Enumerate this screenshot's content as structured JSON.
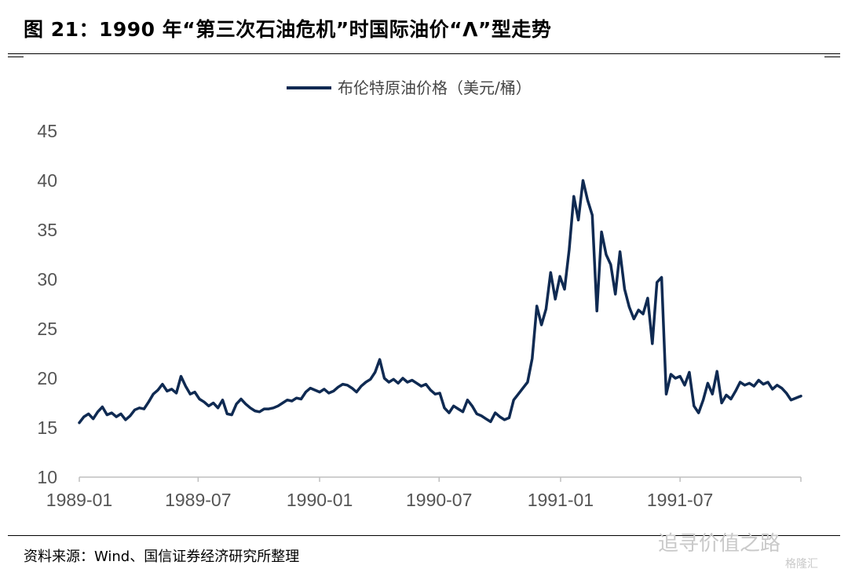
{
  "header": {
    "title": "图 21：1990 年“第三次石油危机”时国际油价“Λ”型走势"
  },
  "footer": {
    "source": "资料来源：Wind、国信证券经济研究所整理",
    "watermark": "追寻价值之路",
    "watermark_sub": "格隆汇"
  },
  "chart_data": {
    "type": "line",
    "legend": "布伦特原油价格（美元/桶）",
    "legend_position": "top-center",
    "x_tick_labels": [
      "1989-01",
      "1989-07",
      "1990-01",
      "1990-07",
      "1991-01",
      "1991-07"
    ],
    "y_tick_labels": [
      "10",
      "15",
      "20",
      "25",
      "30",
      "35",
      "40",
      "45"
    ],
    "ylim": [
      10,
      45
    ],
    "xlim": [
      "1989-01-02",
      "1991-12-31"
    ],
    "grid": false,
    "line_color": "#0f2a52",
    "series": [
      {
        "name": "布伦特原油价格（美元/桶）",
        "points": [
          [
            "1989-01-02",
            15.5
          ],
          [
            "1989-01-09",
            16.1
          ],
          [
            "1989-01-16",
            16.4
          ],
          [
            "1989-01-23",
            15.9
          ],
          [
            "1989-01-30",
            16.6
          ],
          [
            "1989-02-06",
            17.1
          ],
          [
            "1989-02-13",
            16.3
          ],
          [
            "1989-02-20",
            16.5
          ],
          [
            "1989-02-27",
            16.1
          ],
          [
            "1989-03-06",
            16.4
          ],
          [
            "1989-03-13",
            15.8
          ],
          [
            "1989-03-20",
            16.2
          ],
          [
            "1989-03-27",
            16.8
          ],
          [
            "1989-04-03",
            17.0
          ],
          [
            "1989-04-10",
            16.9
          ],
          [
            "1989-04-17",
            17.6
          ],
          [
            "1989-04-24",
            18.4
          ],
          [
            "1989-05-01",
            18.8
          ],
          [
            "1989-05-08",
            19.4
          ],
          [
            "1989-05-15",
            18.7
          ],
          [
            "1989-05-22",
            18.9
          ],
          [
            "1989-05-29",
            18.5
          ],
          [
            "1989-06-05",
            20.2
          ],
          [
            "1989-06-12",
            19.2
          ],
          [
            "1989-06-19",
            18.4
          ],
          [
            "1989-06-26",
            18.6
          ],
          [
            "1989-07-03",
            17.9
          ],
          [
            "1989-07-10",
            17.6
          ],
          [
            "1989-07-17",
            17.2
          ],
          [
            "1989-07-24",
            17.5
          ],
          [
            "1989-07-31",
            17.0
          ],
          [
            "1989-08-07",
            17.8
          ],
          [
            "1989-08-14",
            16.4
          ],
          [
            "1989-08-21",
            16.3
          ],
          [
            "1989-08-28",
            17.4
          ],
          [
            "1989-09-04",
            17.9
          ],
          [
            "1989-09-11",
            17.4
          ],
          [
            "1989-09-18",
            17.0
          ],
          [
            "1989-09-25",
            16.7
          ],
          [
            "1989-10-02",
            16.6
          ],
          [
            "1989-10-09",
            16.9
          ],
          [
            "1989-10-16",
            16.9
          ],
          [
            "1989-10-23",
            17.0
          ],
          [
            "1989-10-30",
            17.2
          ],
          [
            "1989-11-06",
            17.5
          ],
          [
            "1989-11-13",
            17.8
          ],
          [
            "1989-11-20",
            17.7
          ],
          [
            "1989-11-27",
            18.0
          ],
          [
            "1989-12-04",
            17.9
          ],
          [
            "1989-12-11",
            18.6
          ],
          [
            "1989-12-18",
            19.0
          ],
          [
            "1989-12-25",
            18.8
          ],
          [
            "1990-01-01",
            18.6
          ],
          [
            "1990-01-08",
            18.9
          ],
          [
            "1990-01-15",
            18.5
          ],
          [
            "1990-01-22",
            18.7
          ],
          [
            "1990-01-29",
            19.1
          ],
          [
            "1990-02-05",
            19.4
          ],
          [
            "1990-02-12",
            19.3
          ],
          [
            "1990-02-19",
            19.0
          ],
          [
            "1990-02-26",
            18.6
          ],
          [
            "1990-03-05",
            19.2
          ],
          [
            "1990-03-12",
            19.6
          ],
          [
            "1990-03-19",
            19.9
          ],
          [
            "1990-03-26",
            20.6
          ],
          [
            "1990-04-02",
            21.9
          ],
          [
            "1990-04-09",
            20.0
          ],
          [
            "1990-04-16",
            19.6
          ],
          [
            "1990-04-23",
            19.9
          ],
          [
            "1990-04-30",
            19.5
          ],
          [
            "1990-05-07",
            20.0
          ],
          [
            "1990-05-14",
            19.6
          ],
          [
            "1990-05-21",
            19.8
          ],
          [
            "1990-05-28",
            19.5
          ],
          [
            "1990-06-04",
            19.2
          ],
          [
            "1990-06-11",
            19.4
          ],
          [
            "1990-06-18",
            18.8
          ],
          [
            "1990-06-25",
            18.4
          ],
          [
            "1990-07-02",
            18.5
          ],
          [
            "1990-07-09",
            17.0
          ],
          [
            "1990-07-16",
            16.5
          ],
          [
            "1990-07-23",
            17.2
          ],
          [
            "1990-07-30",
            16.9
          ],
          [
            "1990-08-06",
            16.6
          ],
          [
            "1990-08-13",
            17.8
          ],
          [
            "1990-08-20",
            17.2
          ],
          [
            "1990-08-27",
            16.4
          ],
          [
            "1990-09-03",
            16.2
          ],
          [
            "1990-09-10",
            15.9
          ],
          [
            "1990-09-17",
            15.6
          ],
          [
            "1990-09-24",
            16.5
          ],
          [
            "1990-10-01",
            16.1
          ],
          [
            "1990-10-08",
            15.8
          ],
          [
            "1990-10-15",
            16.0
          ],
          [
            "1990-10-22",
            17.8
          ],
          [
            "1990-10-29",
            18.4
          ],
          [
            "1990-11-05",
            19.0
          ],
          [
            "1990-11-12",
            19.6
          ],
          [
            "1990-11-19",
            22.0
          ],
          [
            "1990-11-26",
            27.3
          ],
          [
            "1990-12-03",
            25.4
          ],
          [
            "1990-12-10",
            27.0
          ],
          [
            "1990-12-17",
            30.7
          ],
          [
            "1990-12-24",
            28.0
          ],
          [
            "1990-12-31",
            30.3
          ],
          [
            "1991-01-07",
            29.0
          ],
          [
            "1991-01-14",
            33.0
          ],
          [
            "1991-01-21",
            38.4
          ],
          [
            "1991-01-28",
            36.0
          ],
          [
            "1991-02-04",
            40.0
          ],
          [
            "1991-02-11",
            38.0
          ],
          [
            "1991-02-18",
            36.5
          ],
          [
            "1991-02-25",
            26.8
          ],
          [
            "1991-03-04",
            34.8
          ],
          [
            "1991-03-11",
            32.5
          ],
          [
            "1991-03-18",
            31.5
          ],
          [
            "1991-03-25",
            28.5
          ],
          [
            "1991-04-01",
            32.8
          ],
          [
            "1991-04-08",
            29.0
          ],
          [
            "1991-04-15",
            27.2
          ],
          [
            "1991-04-22",
            26.0
          ],
          [
            "1991-04-29",
            26.9
          ],
          [
            "1991-05-06",
            26.5
          ],
          [
            "1991-05-13",
            28.1
          ],
          [
            "1991-05-20",
            23.5
          ],
          [
            "1991-05-27",
            29.7
          ],
          [
            "1991-06-03",
            30.2
          ],
          [
            "1991-06-10",
            18.4
          ],
          [
            "1991-06-17",
            20.4
          ],
          [
            "1991-06-24",
            20.0
          ],
          [
            "1991-07-01",
            20.2
          ],
          [
            "1991-07-08",
            19.3
          ],
          [
            "1991-07-15",
            20.6
          ],
          [
            "1991-07-22",
            17.2
          ],
          [
            "1991-07-29",
            16.5
          ],
          [
            "1991-08-05",
            17.8
          ],
          [
            "1991-08-12",
            19.5
          ],
          [
            "1991-08-19",
            18.4
          ],
          [
            "1991-08-26",
            20.7
          ],
          [
            "1991-09-02",
            17.5
          ],
          [
            "1991-09-09",
            18.3
          ],
          [
            "1991-09-16",
            17.9
          ],
          [
            "1991-09-23",
            18.7
          ],
          [
            "1991-09-30",
            19.6
          ],
          [
            "1991-10-07",
            19.3
          ],
          [
            "1991-10-14",
            19.5
          ],
          [
            "1991-10-21",
            19.2
          ],
          [
            "1991-10-28",
            19.8
          ],
          [
            "1991-11-04",
            19.4
          ],
          [
            "1991-11-11",
            19.6
          ],
          [
            "1991-11-18",
            18.9
          ],
          [
            "1991-11-25",
            19.3
          ],
          [
            "1991-12-02",
            19.0
          ],
          [
            "1991-12-09",
            18.5
          ],
          [
            "1991-12-16",
            17.8
          ],
          [
            "1991-12-31",
            18.2
          ]
        ]
      }
    ]
  }
}
